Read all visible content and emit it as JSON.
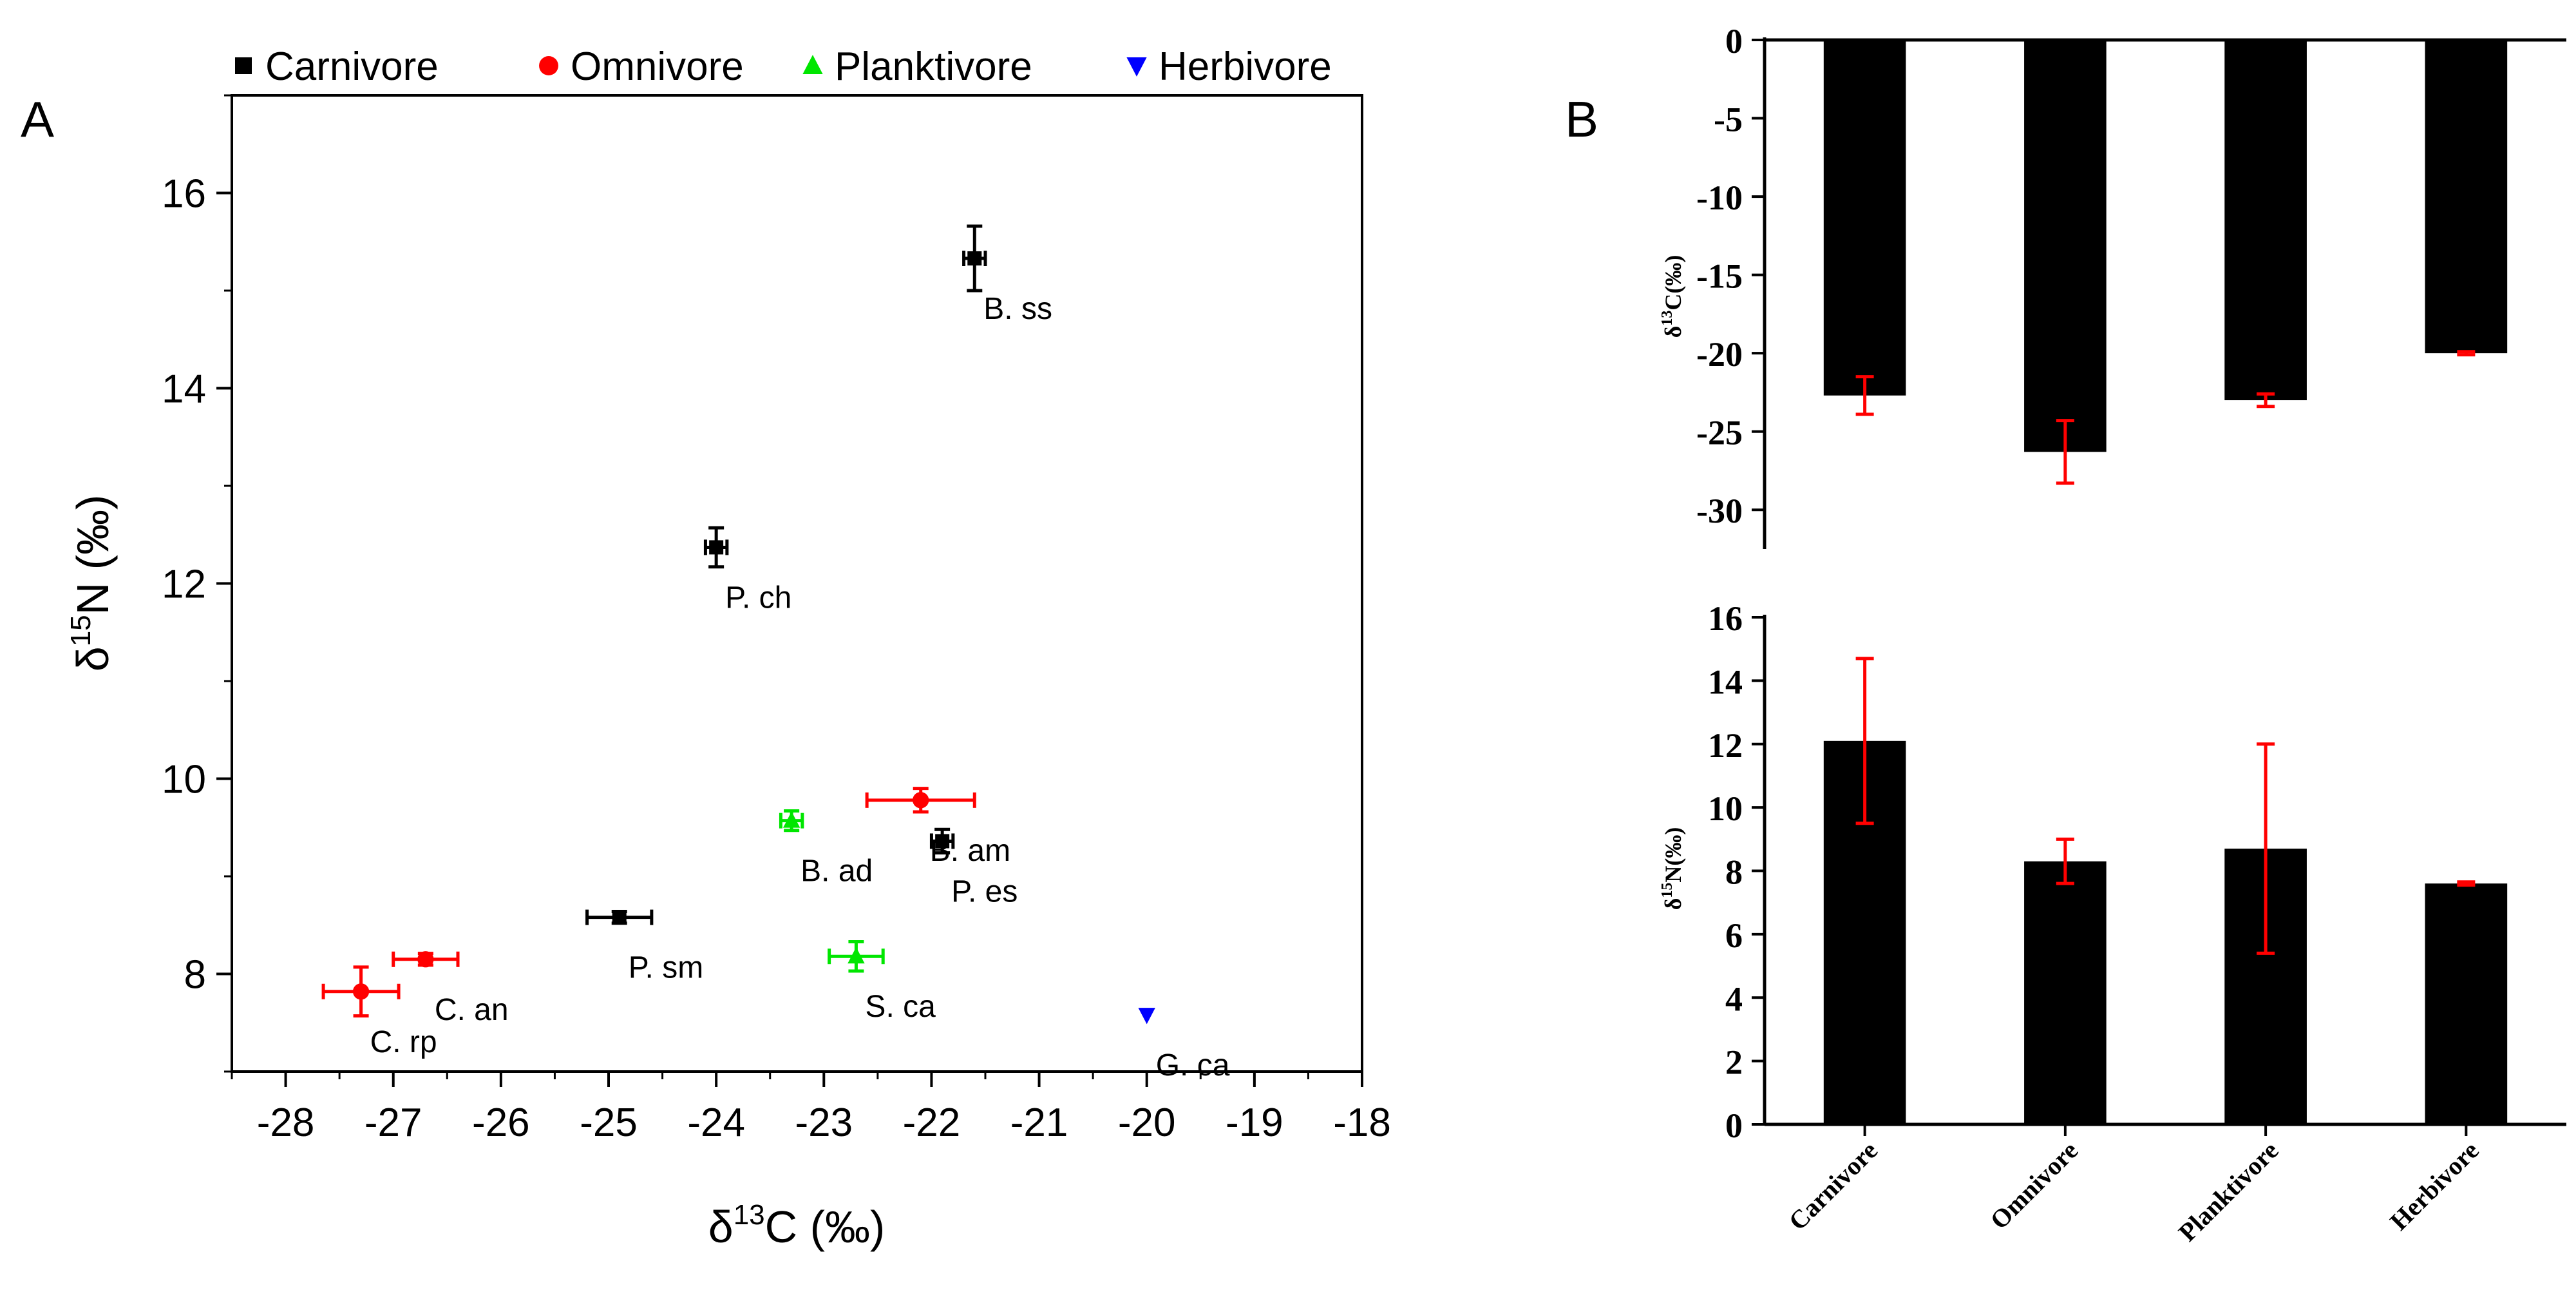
{
  "panel_labels": {
    "a": "A",
    "b": "B"
  },
  "chart_data": [
    {
      "type": "scatter",
      "title": "",
      "xlabel": {
        "prefix": "δ",
        "sup": "13",
        "suffix": "C (‰)"
      },
      "ylabel": {
        "prefix": "δ",
        "sup": "15",
        "suffix": "N (‰)"
      },
      "xlim": [
        -28.5,
        -18
      ],
      "ylim": [
        7,
        17
      ],
      "xticks": [
        "-28",
        "-27",
        "-26",
        "-25",
        "-24",
        "-23",
        "-22",
        "-21",
        "-20",
        "-19",
        "-18"
      ],
      "yticks": [
        "8",
        "10",
        "12",
        "14",
        "16"
      ],
      "legend": {
        "placement": "top",
        "entries": [
          {
            "group": "Carnivore",
            "label": "Carnivore",
            "marker": "square",
            "color": "#000000"
          },
          {
            "group": "Omnivore",
            "label": "Omnivore",
            "marker": "circle",
            "color": "#ff0000"
          },
          {
            "group": "Planktivore",
            "label": "Planktivore",
            "marker": "triangle-up",
            "color": "#00e600"
          },
          {
            "group": "Herbivore",
            "label": "Herbivore",
            "marker": "triangle-down",
            "color": "#0000ff"
          }
        ]
      },
      "points": [
        {
          "label": "B. ss",
          "group": "Carnivore",
          "x": -21.6,
          "y": 15.33,
          "xerr": 0.1,
          "yerr": 0.33,
          "label_pos": "below-right"
        },
        {
          "label": "P. ch",
          "group": "Carnivore",
          "x": -24.0,
          "y": 12.37,
          "xerr": 0.1,
          "yerr": 0.2,
          "label_pos": "below-right"
        },
        {
          "label": "B. am",
          "group": "Omnivore",
          "x": -22.1,
          "y": 9.78,
          "xerr": 0.5,
          "yerr": 0.12,
          "label_pos": "below-right"
        },
        {
          "label": "P. es",
          "group": "Carnivore",
          "x": -21.9,
          "y": 9.36,
          "xerr": 0.1,
          "yerr": 0.12,
          "label_pos": "below-right"
        },
        {
          "label": "B. ad",
          "group": "Planktivore",
          "x": -23.3,
          "y": 9.57,
          "xerr": 0.1,
          "yerr": 0.1,
          "label_pos": "below-right"
        },
        {
          "label": "P. sm",
          "group": "Carnivore",
          "x": -24.9,
          "y": 8.58,
          "xerr": 0.3,
          "yerr": 0.06,
          "label_pos": "below-right"
        },
        {
          "label": "S. ca",
          "group": "Planktivore",
          "x": -22.7,
          "y": 8.18,
          "xerr": 0.25,
          "yerr": 0.15,
          "label_pos": "below-right"
        },
        {
          "label": "C. an",
          "group": "Omnivore",
          "x": -26.7,
          "y": 8.15,
          "xerr": 0.3,
          "yerr": 0.06,
          "label_pos": "below-right"
        },
        {
          "label": "C. rp",
          "group": "Omnivore",
          "x": -27.3,
          "y": 7.82,
          "xerr": 0.35,
          "yerr": 0.25,
          "label_pos": "below-right"
        },
        {
          "label": "G. ca",
          "group": "Herbivore",
          "x": -20.0,
          "y": 7.58,
          "xerr": 0,
          "yerr": 0,
          "label_pos": "below-right"
        }
      ]
    },
    {
      "type": "bar",
      "title": "",
      "categories": [
        "Carnivore",
        "Omnivore",
        "Planktivore",
        "Herbivore"
      ],
      "values": [
        -22.7,
        -26.3,
        -23.0,
        -20.0
      ],
      "errors": [
        1.2,
        2.0,
        0.4,
        0.1
      ],
      "ylim": [
        -32.5,
        0
      ],
      "yticks": [
        "0",
        "-5",
        "-10",
        "-15",
        "-20",
        "-25",
        "-30"
      ],
      "ylabel": {
        "prefix": "δ",
        "sup": "13",
        "suffix": "C(‰)"
      },
      "bar_color": "#000000",
      "error_color": "#ff0000"
    },
    {
      "type": "bar",
      "title": "",
      "categories": [
        "Carnivore",
        "Omnivore",
        "Planktivore",
        "Herbivore"
      ],
      "values": [
        12.1,
        8.3,
        8.7,
        7.6
      ],
      "errors": [
        2.6,
        0.7,
        3.3,
        0.05
      ],
      "ylim": [
        0,
        16
      ],
      "yticks": [
        "0",
        "2",
        "4",
        "6",
        "8",
        "10",
        "12",
        "14",
        "16"
      ],
      "ylabel": {
        "prefix": "δ",
        "sup": "15",
        "suffix": "N(‰)"
      },
      "bar_color": "#000000",
      "error_color": "#ff0000"
    }
  ]
}
